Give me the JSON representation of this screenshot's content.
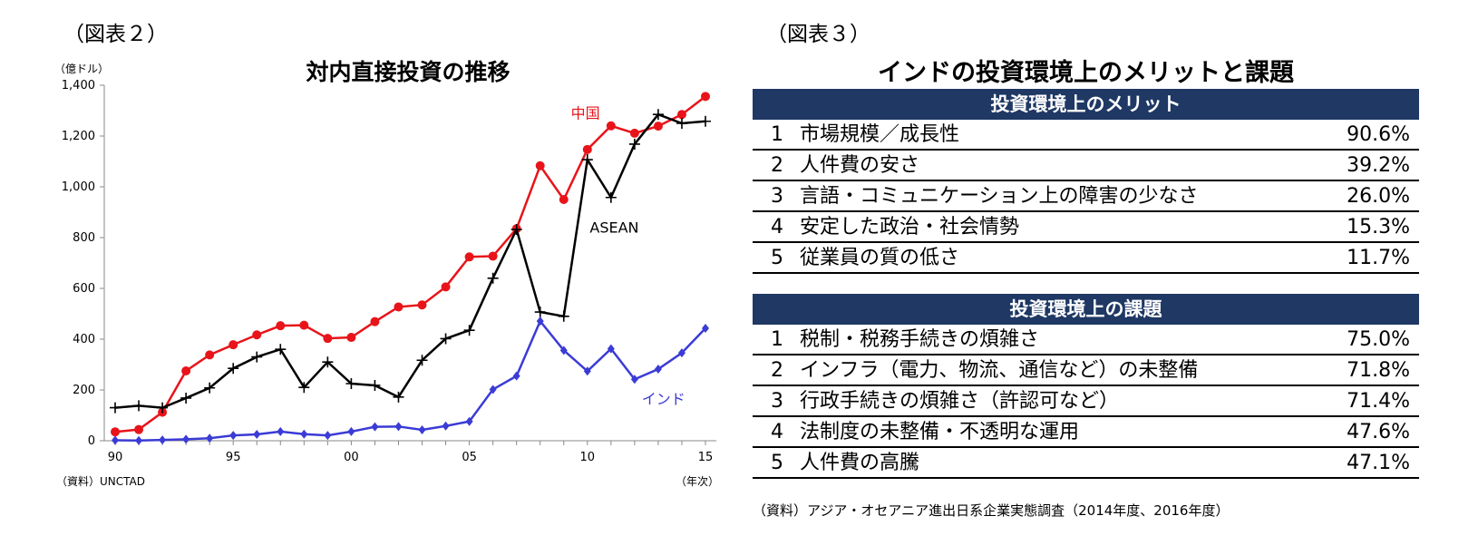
{
  "fig2": {
    "label": "（図表２）",
    "title": "対内直接投資の推移",
    "ylabel": "（億ドル）",
    "xunit": "（年次）",
    "source": "（資料）UNCTAD"
  },
  "chart_data": {
    "type": "line",
    "title": "対内直接投資の推移",
    "ylabel": "（億ドル）",
    "xlabel": "（年次）",
    "x": [
      1990,
      1991,
      1992,
      1993,
      1994,
      1995,
      1996,
      1997,
      1998,
      1999,
      2000,
      2001,
      2002,
      2003,
      2004,
      2005,
      2006,
      2007,
      2008,
      2009,
      2010,
      2011,
      2012,
      2013,
      2014,
      2015
    ],
    "xticks": [
      {
        "x": 1990,
        "label": "90"
      },
      {
        "x": 1995,
        "label": "95"
      },
      {
        "x": 2000,
        "label": "00"
      },
      {
        "x": 2005,
        "label": "05"
      },
      {
        "x": 2010,
        "label": "10"
      },
      {
        "x": 2015,
        "label": "15"
      }
    ],
    "ylim": [
      0,
      1400
    ],
    "yticks": [
      {
        "v": 0,
        "label": "0"
      },
      {
        "v": 200,
        "label": "200"
      },
      {
        "v": 400,
        "label": "400"
      },
      {
        "v": 600,
        "label": "600"
      },
      {
        "v": 800,
        "label": "800"
      },
      {
        "v": 1000,
        "label": "1,000"
      },
      {
        "v": 1200,
        "label": "1,200"
      },
      {
        "v": 1400,
        "label": "1,400"
      }
    ],
    "grid": false,
    "series": [
      {
        "name": "中国",
        "color": "#e8141a",
        "marker": "circle",
        "values": [
          35,
          44,
          112,
          275,
          338,
          378,
          417,
          453,
          455,
          403,
          407,
          469,
          527,
          535,
          606,
          724,
          727,
          835,
          1083,
          950,
          1147,
          1240,
          1211,
          1239,
          1285,
          1356
        ]
      },
      {
        "name": "ASEAN",
        "color": "#000000",
        "marker": "plus",
        "values": [
          130,
          138,
          130,
          168,
          208,
          285,
          330,
          360,
          210,
          310,
          225,
          218,
          172,
          317,
          402,
          435,
          640,
          832,
          507,
          490,
          1107,
          958,
          1168,
          1285,
          1250,
          1258
        ]
      },
      {
        "name": "インド",
        "color": "#3b3bd6",
        "marker": "diamond",
        "values": [
          2,
          1,
          3,
          6,
          10,
          21,
          25,
          36,
          26,
          21,
          36,
          55,
          56,
          43,
          58,
          76,
          202,
          255,
          471,
          356,
          274,
          362,
          242,
          282,
          346,
          443
        ]
      }
    ]
  },
  "fig3": {
    "label": "（図表３）",
    "title": "インドの投資環境上のメリットと課題",
    "merits": {
      "header": "投資環境上のメリット",
      "rows": [
        {
          "num": "1",
          "label": "市場規模／成長性",
          "pct": "90.6%"
        },
        {
          "num": "2",
          "label": "人件費の安さ",
          "pct": "39.2%"
        },
        {
          "num": "3",
          "label": "言語・コミュニケーション上の障害の少なさ",
          "pct": "26.0%"
        },
        {
          "num": "4",
          "label": "安定した政治・社会情勢",
          "pct": "15.3%"
        },
        {
          "num": "5",
          "label": "従業員の質の低さ",
          "pct": "11.7%"
        }
      ]
    },
    "issues": {
      "header": "投資環境上の課題",
      "rows": [
        {
          "num": "1",
          "label": "税制・税務手続きの煩雑さ",
          "pct": "75.0%"
        },
        {
          "num": "2",
          "label": "インフラ（電力、物流、通信など）の未整備",
          "pct": "71.8%"
        },
        {
          "num": "3",
          "label": "行政手続きの煩雑さ（許認可など）",
          "pct": "71.4%"
        },
        {
          "num": "4",
          "label": "法制度の未整備・不透明な運用",
          "pct": "47.6%"
        },
        {
          "num": "5",
          "label": "人件費の高騰",
          "pct": "47.1%"
        }
      ]
    },
    "source": "（資料）アジア・オセアニア進出日系企業実態調査（2014年度、2016年度）"
  }
}
